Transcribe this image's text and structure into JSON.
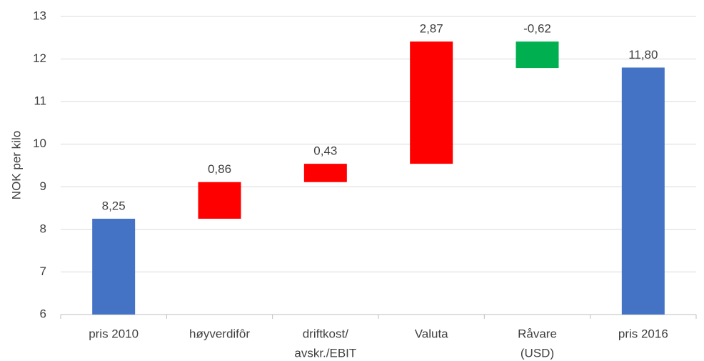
{
  "chart_data": {
    "type": "waterfall",
    "ylabel": "NOK per kilo",
    "categories": [
      [
        "pris 2010"
      ],
      [
        "høyverdifôr"
      ],
      [
        "driftkost/",
        "avskr./EBIT"
      ],
      [
        "Valuta"
      ],
      [
        "Råvare",
        "(USD)"
      ],
      [
        "pris 2016"
      ]
    ],
    "values": [
      8.25,
      0.86,
      0.43,
      2.87,
      -0.62,
      11.8
    ],
    "value_labels": [
      "8,25",
      "0,86",
      "0,43",
      "2,87",
      "-0,62",
      "11,80"
    ],
    "totals": [
      true,
      false,
      false,
      false,
      false,
      true
    ],
    "colors": [
      "#4472c4",
      "#ff0000",
      "#ff0000",
      "#ff0000",
      "#00b050",
      "#4472c4"
    ],
    "ylim": [
      6,
      13
    ],
    "yticks": [
      6,
      7,
      8,
      9,
      10,
      11,
      12,
      13
    ],
    "grid": true
  }
}
